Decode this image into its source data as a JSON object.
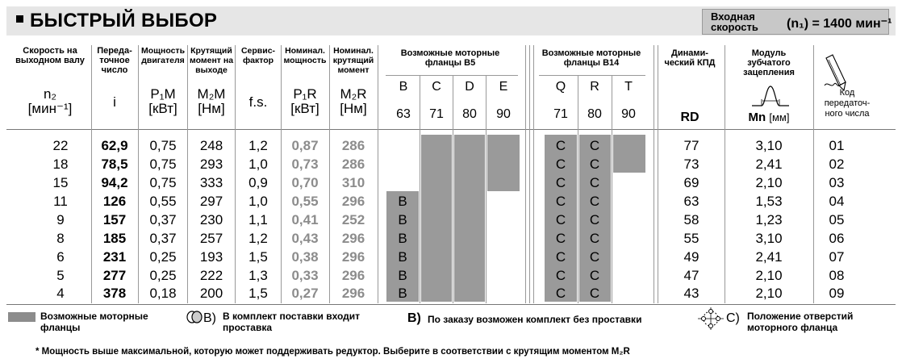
{
  "title": "БЫСТРЫЙ ВЫБОР",
  "input_speed": {
    "label": "Входная скорость",
    "value": "(n₁) = 1400 мин⁻¹"
  },
  "headers": {
    "speed": "Скорость на выходном валу",
    "ratio": "Переда-точное число",
    "power": "Мощность двигателя",
    "torque": "Крутящий момент на выходе",
    "sf": "Сервис-фактор",
    "nom_power": "Номинал. мощность",
    "nom_torque": "Номинал. крутящий момент",
    "b5": "Возможные моторные фланцы B5",
    "b14": "Возможные моторные фланцы B14",
    "kpd": "Динами-ческий КПД",
    "module": "Модуль зубчатого зацепления",
    "code": "Код передаточ-ного числа"
  },
  "symbols": {
    "speed_sym": "n₂",
    "speed_unit": "[мин⁻¹]",
    "ratio_sym": "i",
    "power_sym": "P₁M",
    "power_unit": "[кВт]",
    "torque_sym": "M₂M",
    "torque_unit": "[Нм]",
    "sf_sym": "f.s.",
    "nom_power_sym": "P₁R",
    "nom_power_unit": "[кВт]",
    "nom_torque_sym": "M₂R",
    "nom_torque_unit": "[Нм]",
    "kpd_sym": "RD",
    "module_sym": "Mn",
    "module_unit": "[мм]"
  },
  "b5_flanges": [
    {
      "letter": "B",
      "size": "63"
    },
    {
      "letter": "C",
      "size": "71"
    },
    {
      "letter": "D",
      "size": "80"
    },
    {
      "letter": "E",
      "size": "90"
    }
  ],
  "b14_flanges": [
    {
      "letter": "Q",
      "size": "71"
    },
    {
      "letter": "R",
      "size": "80"
    },
    {
      "letter": "T",
      "size": "90"
    }
  ],
  "rows": [
    {
      "n2": "22",
      "i": "62,9",
      "p1m": "0,75",
      "m2m": "248",
      "fs": "1,2",
      "p1r": "0,87",
      "m2r": "286",
      "b5": "",
      "rd": "77",
      "mn": "3,10",
      "code": "01"
    },
    {
      "n2": "18",
      "i": "78,5",
      "p1m": "0,75",
      "m2m": "293",
      "fs": "1,0",
      "p1r": "0,73",
      "m2r": "286",
      "b5": "",
      "rd": "73",
      "mn": "2,41",
      "code": "02"
    },
    {
      "n2": "15",
      "i": "94,2",
      "p1m": "0,75",
      "m2m": "333",
      "fs": "0,9",
      "p1r": "0,70",
      "m2r": "310",
      "b5": "",
      "rd": "69",
      "mn": "2,10",
      "code": "03"
    },
    {
      "n2": "11",
      "i": "126",
      "p1m": "0,55",
      "m2m": "297",
      "fs": "1,0",
      "p1r": "0,55",
      "m2r": "296",
      "b5": "B",
      "rd": "63",
      "mn": "1,53",
      "code": "04"
    },
    {
      "n2": "9",
      "i": "157",
      "p1m": "0,37",
      "m2m": "230",
      "fs": "1,1",
      "p1r": "0,41",
      "m2r": "252",
      "b5": "B",
      "rd": "58",
      "mn": "1,23",
      "code": "05"
    },
    {
      "n2": "8",
      "i": "185",
      "p1m": "0,37",
      "m2m": "257",
      "fs": "1,2",
      "p1r": "0,43",
      "m2r": "296",
      "b5": "B",
      "rd": "55",
      "mn": "3,10",
      "code": "06"
    },
    {
      "n2": "6",
      "i": "231",
      "p1m": "0,25",
      "m2m": "193",
      "fs": "1,5",
      "p1r": "0,38",
      "m2r": "296",
      "b5": "B",
      "rd": "49",
      "mn": "2,41",
      "code": "07"
    },
    {
      "n2": "5",
      "i": "277",
      "p1m": "0,25",
      "m2m": "222",
      "fs": "1,3",
      "p1r": "0,33",
      "m2r": "296",
      "b5": "B",
      "rd": "47",
      "mn": "2,10",
      "code": "08"
    },
    {
      "n2": "4",
      "i": "378",
      "p1m": "0,18",
      "m2m": "200",
      "fs": "1,5",
      "p1r": "0,27",
      "m2r": "296",
      "b5": "B",
      "rd": "43",
      "mn": "2,10",
      "code": "09"
    }
  ],
  "b14_marks": {
    "q": "C",
    "r": "C"
  },
  "legend": {
    "flanges": "Возможные моторные фланцы",
    "spacer_mark": "B)",
    "spacer": "В комплект поставки входит проставка",
    "nospacer_mark": "B)",
    "nospacer": "По заказу возможен комплект без проставки",
    "holes_mark": "C)",
    "holes": "Положение отверстий моторного фланца"
  },
  "footnote": "* Мощность выше максимальной, которую может поддерживать редуктор. Выберите в соответствии с крутящим моментом M₂R"
}
